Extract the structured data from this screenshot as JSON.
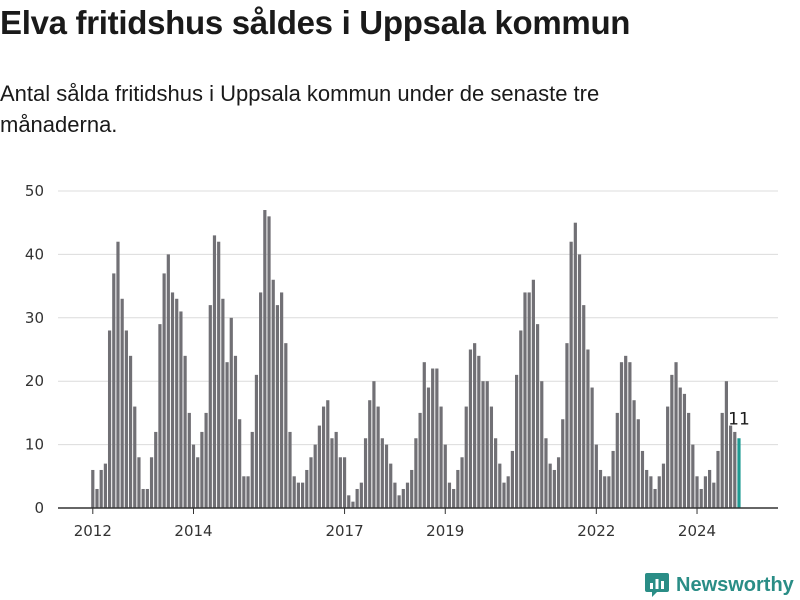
{
  "chart_data": {
    "type": "bar",
    "title": "Elva fritidshus såldes i Uppsala kommun",
    "subtitle": "Antal sålda fritidshus i Uppsala kommun under de senaste tre månaderna.",
    "xlabel": "",
    "ylabel": "",
    "ylim": [
      0,
      50
    ],
    "yticks": [
      0,
      10,
      20,
      30,
      40,
      50
    ],
    "xticks": [
      "2012",
      "2014",
      "2017",
      "2019",
      "2022",
      "2024"
    ],
    "grid": true,
    "start": "2012-01",
    "frequency": "monthly",
    "bar_color": "#717075",
    "highlight_color": "#1e9b93",
    "highlight_last": true,
    "last_label": "11",
    "values": [
      6,
      3,
      6,
      7,
      28,
      37,
      42,
      33,
      28,
      24,
      16,
      8,
      3,
      3,
      8,
      12,
      29,
      37,
      40,
      34,
      33,
      31,
      24,
      15,
      10,
      8,
      12,
      15,
      32,
      43,
      42,
      33,
      23,
      30,
      24,
      14,
      5,
      5,
      12,
      21,
      34,
      47,
      46,
      36,
      32,
      34,
      26,
      12,
      5,
      4,
      4,
      6,
      8,
      10,
      13,
      16,
      17,
      11,
      12,
      8,
      8,
      2,
      1,
      3,
      4,
      11,
      17,
      20,
      16,
      11,
      10,
      7,
      4,
      2,
      3,
      4,
      6,
      11,
      15,
      23,
      19,
      22,
      22,
      16,
      10,
      4,
      3,
      6,
      8,
      16,
      25,
      26,
      24,
      20,
      20,
      16,
      11,
      7,
      4,
      5,
      9,
      21,
      28,
      34,
      34,
      36,
      29,
      20,
      11,
      7,
      6,
      8,
      14,
      26,
      42,
      45,
      40,
      32,
      25,
      19,
      10,
      6,
      5,
      5,
      9,
      15,
      23,
      24,
      23,
      17,
      14,
      9,
      6,
      5,
      3,
      5,
      7,
      16,
      21,
      23,
      19,
      18,
      15,
      10,
      5,
      3,
      5,
      6,
      4,
      9,
      15,
      20,
      13,
      12,
      11
    ]
  },
  "footer": {
    "brand": "Newsworthy"
  }
}
